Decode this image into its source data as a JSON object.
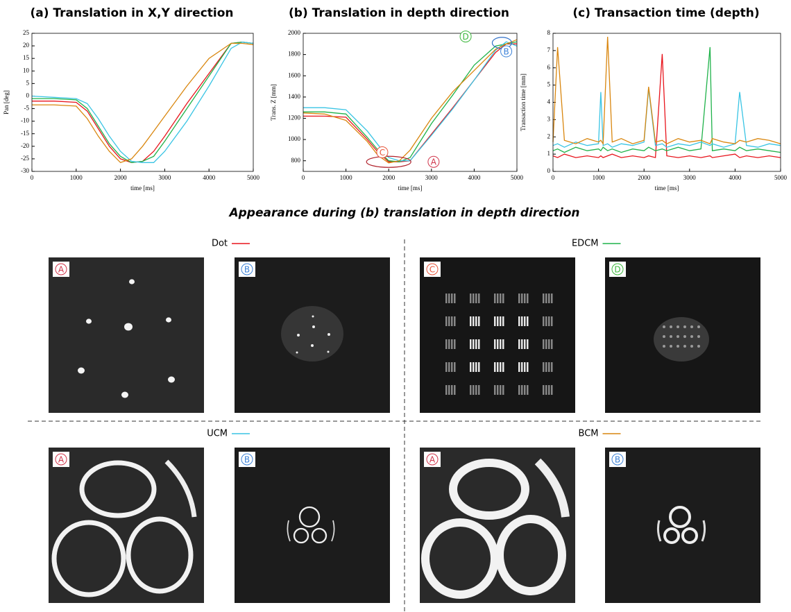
{
  "chart_data": [
    {
      "type": "line",
      "title": "(a) Translation in X,Y direction",
      "xlabel": "time [ms]",
      "ylabel": "Pan [deg]",
      "x": [
        0,
        500,
        1000,
        1250,
        1500,
        1750,
        2000,
        2250,
        2500,
        2750,
        3000,
        3500,
        4000,
        4500,
        4750,
        5000
      ],
      "xlim": [
        0,
        5000
      ],
      "xticks": [
        0,
        1000,
        2000,
        3000,
        4000,
        5000
      ],
      "ylim": [
        -30,
        25
      ],
      "yticks": [
        -30,
        -25,
        -20,
        -15,
        -10,
        -5,
        0,
        5,
        10,
        15,
        20,
        25
      ],
      "grid": false,
      "series": [
        {
          "color": "#e8141c",
          "values": [
            -2,
            -2,
            -2.5,
            -6,
            -13,
            -20,
            -25,
            -26.5,
            -26,
            -22,
            -16,
            -3,
            9,
            21,
            21.5,
            21
          ]
        },
        {
          "color": "#1fb24a",
          "values": [
            -1,
            -1,
            -1.5,
            -5,
            -12,
            -19,
            -24,
            -26.5,
            -26,
            -24,
            -18,
            -5,
            8,
            21,
            21.5,
            21
          ]
        },
        {
          "color": "#38c4e4",
          "values": [
            0,
            -0.5,
            -1,
            -3,
            -9,
            -16,
            -22,
            -26,
            -26.5,
            -26.5,
            -22,
            -10,
            4,
            19,
            21.5,
            21
          ]
        },
        {
          "color": "#d9860e",
          "values": [
            -3.5,
            -3.5,
            -4,
            -9,
            -16,
            -22,
            -26.5,
            -25,
            -20,
            -14,
            -8,
            4,
            15,
            21,
            21,
            20.5
          ]
        }
      ]
    },
    {
      "type": "line",
      "title": "(b) Translation in depth direction",
      "xlabel": "time [ms]",
      "ylabel": "Trans. Z [mm]",
      "x": [
        0,
        500,
        1000,
        1500,
        1750,
        2000,
        2250,
        2500,
        3000,
        3500,
        4000,
        4500,
        4750,
        5000
      ],
      "xlim": [
        0,
        5000
      ],
      "xticks": [
        0,
        1000,
        2000,
        3000,
        4000,
        5000
      ],
      "ylim": [
        700,
        2000
      ],
      "yticks": [
        800,
        1000,
        1200,
        1400,
        1600,
        1800,
        2000
      ],
      "grid": false,
      "series": [
        {
          "color": "#e8141c",
          "values": [
            1220,
            1220,
            1210,
            1000,
            880,
            790,
            790,
            800,
            1050,
            1300,
            1560,
            1820,
            1900,
            1900
          ]
        },
        {
          "color": "#1fb24a",
          "values": [
            1260,
            1260,
            1240,
            1020,
            900,
            800,
            790,
            830,
            1150,
            1420,
            1700,
            1880,
            1900,
            1920
          ]
        },
        {
          "color": "#38c4e4",
          "values": [
            1300,
            1300,
            1280,
            1080,
            950,
            830,
            800,
            800,
            1040,
            1290,
            1560,
            1840,
            1920,
            1880
          ]
        },
        {
          "color": "#d9860e",
          "values": [
            1250,
            1240,
            1180,
            980,
            850,
            780,
            800,
            900,
            1200,
            1450,
            1650,
            1850,
            1900,
            1940
          ]
        }
      ],
      "annotations": [
        {
          "text": "A",
          "color": "#d0344a"
        },
        {
          "text": "B",
          "color": "#3b82d8"
        },
        {
          "text": "C",
          "color": "#e8553a"
        },
        {
          "text": "D",
          "color": "#3cb83c"
        }
      ]
    },
    {
      "type": "line",
      "title": "(c) Transaction time (depth)",
      "xlabel": "time [ms]",
      "ylabel": "Transaction time [mm]",
      "x": [
        0,
        100,
        250,
        500,
        750,
        1000,
        1050,
        1100,
        1200,
        1300,
        1500,
        1750,
        2000,
        2100,
        2250,
        2400,
        2500,
        2750,
        3000,
        3250,
        3450,
        3500,
        3750,
        4000,
        4100,
        4250,
        4500,
        4750,
        5000
      ],
      "xlim": [
        0,
        5000
      ],
      "xticks": [
        0,
        1000,
        2000,
        3000,
        4000,
        5000
      ],
      "ylim": [
        0,
        8
      ],
      "yticks": [
        0,
        1,
        2,
        3,
        4,
        5,
        6,
        7,
        8
      ],
      "grid": false,
      "series": [
        {
          "color": "#e8141c",
          "values": [
            0.9,
            0.8,
            1.0,
            0.8,
            0.9,
            0.8,
            0.9,
            0.8,
            0.9,
            1.0,
            0.8,
            0.9,
            0.8,
            0.9,
            0.8,
            6.8,
            0.9,
            0.8,
            0.9,
            0.8,
            0.9,
            0.8,
            0.9,
            1.0,
            0.8,
            0.9,
            0.8,
            0.9,
            0.8
          ]
        },
        {
          "color": "#1fb24a",
          "values": [
            1.2,
            1.3,
            1.1,
            1.4,
            1.2,
            1.3,
            1.2,
            1.4,
            1.2,
            1.3,
            1.1,
            1.3,
            1.2,
            1.4,
            1.2,
            1.3,
            1.2,
            1.4,
            1.2,
            1.3,
            7.2,
            1.2,
            1.3,
            1.2,
            1.4,
            1.2,
            1.3,
            1.2,
            1.1
          ]
        },
        {
          "color": "#38c4e4",
          "values": [
            1.5,
            1.6,
            1.4,
            1.7,
            1.5,
            1.6,
            4.6,
            1.5,
            1.6,
            1.4,
            1.6,
            1.5,
            1.7,
            4.8,
            1.5,
            1.6,
            1.4,
            1.6,
            1.5,
            1.7,
            1.5,
            1.6,
            1.4,
            1.6,
            4.6,
            1.5,
            1.4,
            1.6,
            1.5
          ]
        },
        {
          "color": "#d9860e",
          "values": [
            1.7,
            7.2,
            1.8,
            1.6,
            1.9,
            1.7,
            1.8,
            1.6,
            7.8,
            1.7,
            1.9,
            1.6,
            1.8,
            4.9,
            1.7,
            1.8,
            1.6,
            1.9,
            1.7,
            1.8,
            1.6,
            1.9,
            1.7,
            1.6,
            1.8,
            1.7,
            1.9,
            1.8,
            1.6
          ]
        }
      ]
    }
  ],
  "appearance": {
    "title": "Appearance during (b) translation in depth direction",
    "groups": [
      {
        "name": "Dot",
        "color": "#e8141c",
        "panels": [
          "A",
          "B"
        ]
      },
      {
        "name": "EDCM",
        "color": "#1fb24a",
        "panels": [
          "C",
          "D"
        ]
      },
      {
        "name": "UCM",
        "color": "#38c4e4",
        "panels": [
          "A",
          "B"
        ]
      },
      {
        "name": "BCM",
        "color": "#d9860e",
        "panels": [
          "A",
          "B"
        ]
      }
    ]
  }
}
